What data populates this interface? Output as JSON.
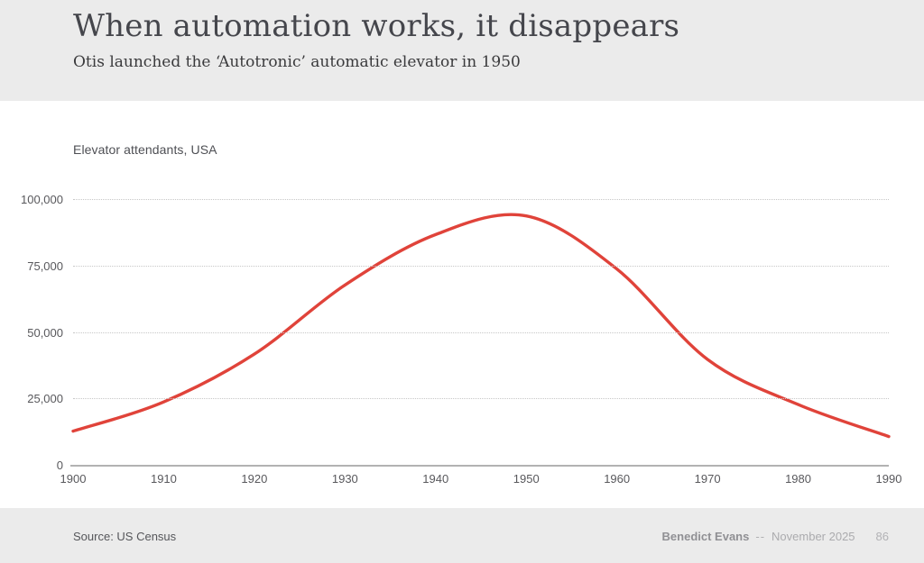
{
  "header": {
    "title": "When automation works, it disappears",
    "subtitle": "Otis launched the ‘Autotronic’ automatic elevator in 1950"
  },
  "chart": {
    "label": "Elevator attendants, USA"
  },
  "chart_data": {
    "type": "line",
    "title": "Elevator attendants, USA",
    "series_name": "Elevator attendants, USA",
    "x": [
      1900,
      1910,
      1920,
      1930,
      1940,
      1950,
      1960,
      1970,
      1980,
      1990
    ],
    "values": [
      13000,
      24000,
      42000,
      68000,
      87000,
      94000,
      74000,
      40000,
      23000,
      11000
    ],
    "xlabel": "",
    "ylabel": "",
    "ylim": [
      0,
      100000
    ],
    "yticks": [
      0,
      25000,
      50000,
      75000,
      100000
    ],
    "ytick_labels": [
      "0",
      "25,000",
      "50,000",
      "75,000",
      "100,000"
    ],
    "xtick_labels": [
      "1900",
      "1910",
      "1920",
      "1930",
      "1940",
      "1950",
      "1960",
      "1970",
      "1980",
      "1990"
    ],
    "grid": "horizontal-dotted",
    "legend": "none",
    "line_color": "#e0433a",
    "gridline_color": "#c7c7c7"
  },
  "footer": {
    "source": "Source: US Census",
    "author": "Benedict Evans",
    "separator": "--",
    "date": "November 2025",
    "page_number": "86"
  }
}
